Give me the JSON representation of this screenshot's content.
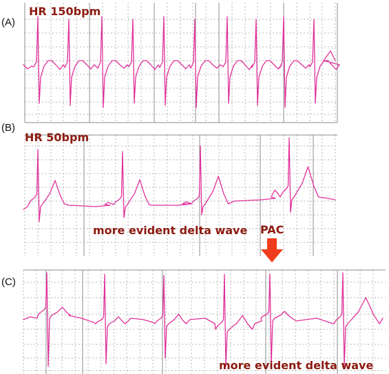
{
  "colors": {
    "trace": "#e0309a",
    "label": "#8b1a10",
    "arrow": "#f03c1e",
    "grid_major": "#8e8e8e",
    "grid_minor": "#b5b5b5"
  },
  "panels": [
    {
      "id": "A",
      "label": "(A)",
      "heart_rate_label": "HR 150bpm",
      "annotations": []
    },
    {
      "id": "B",
      "label": "(B)",
      "heart_rate_label": "HR 50bpm",
      "annotations": [
        {
          "id": "delta-b",
          "text": "more evident delta wave"
        }
      ]
    },
    {
      "id": "C",
      "label": "(C)",
      "heart_rate_label": "",
      "annotations": [
        {
          "id": "delta-c",
          "text": "more evident delta wave"
        }
      ]
    }
  ],
  "pac_marker": {
    "text": "PAC",
    "icon": "down-arrow-icon"
  }
}
